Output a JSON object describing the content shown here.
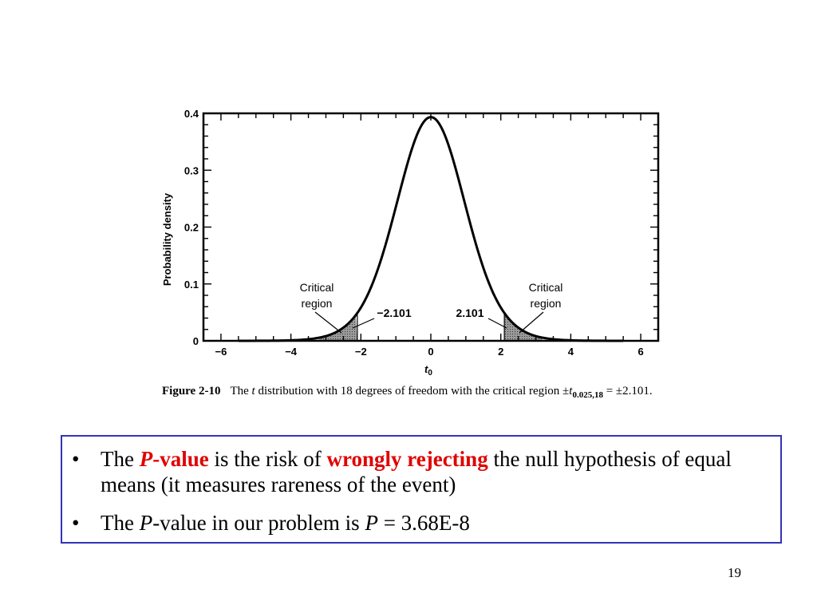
{
  "chart_data": {
    "type": "line",
    "title": "",
    "xlabel": "t",
    "xlabel_subscript": "0",
    "ylabel": "Probability density",
    "xlim": [
      -6.5,
      6.5
    ],
    "ylim": [
      0,
      0.4
    ],
    "x_ticks": [
      -6,
      -4,
      -2,
      0,
      2,
      4,
      6
    ],
    "x_tick_labels": [
      "−6",
      "−4",
      "−2",
      "0",
      "2",
      "4",
      "6"
    ],
    "y_ticks": [
      0,
      0.1,
      0.2,
      0.3,
      0.4
    ],
    "y_tick_labels": [
      "0",
      "0.1",
      "0.2",
      "0.3",
      "0.4"
    ],
    "degrees_of_freedom": 18,
    "critical_value": 2.101,
    "x": [
      -5.5,
      -5,
      -4.5,
      -4,
      -3.5,
      -3,
      -2.5,
      -2.101,
      -2,
      -1.5,
      -1,
      -0.5,
      0,
      0.5,
      1,
      1.5,
      2,
      2.101,
      2.5,
      3,
      3.5,
      4,
      4.5,
      5,
      5.5
    ],
    "y": [
      0.0001,
      0.0002,
      0.0005,
      0.0012,
      0.003,
      0.0078,
      0.0199,
      0.0446,
      0.0521,
      0.1266,
      0.2343,
      0.3432,
      0.3939,
      0.3432,
      0.2343,
      0.1266,
      0.0521,
      0.0446,
      0.0199,
      0.0078,
      0.003,
      0.0012,
      0.0005,
      0.0002,
      0.0001
    ],
    "annotations": {
      "left_region_line1": "Critical",
      "left_region_line2": "region",
      "right_region_line1": "Critical",
      "right_region_line2": "region",
      "left_value": "−2.101",
      "right_value": "2.101"
    },
    "grid": false
  },
  "caption": {
    "figure_number": "Figure 2-10",
    "text_part1": "The ",
    "t_italic": "t",
    "text_part2": " distribution with 18 degrees of freedom with the critical region ±",
    "subscript": "0.025,18",
    "text_part3": " = ±2.101."
  },
  "bullets": {
    "b1_the": "The ",
    "b1_p": "P",
    "b1_value": "-value",
    "b1_mid": " is the risk of ",
    "b1_wrongly": "wrongly rejecting",
    "b1_rest": " the null hypothesis of equal means (it measures rareness of the event)",
    "b2_the": "The ",
    "b2_p": "P",
    "b2_mid": "-value in our problem is ",
    "b2_p2": "P",
    "b2_rest": " = 3.68E-8"
  },
  "page_number": "19",
  "colors": {
    "box_border": "#3333bb",
    "emphasis": "#e00000"
  }
}
